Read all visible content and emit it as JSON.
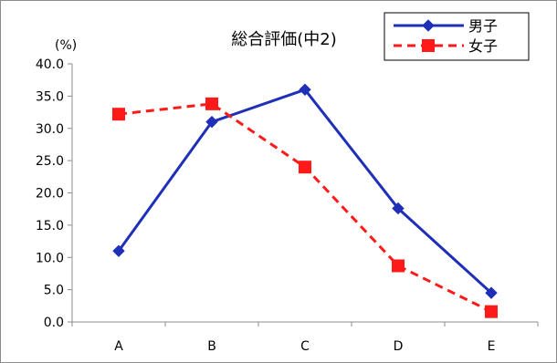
{
  "chart_data": {
    "type": "line",
    "title": "総合評価(中2)",
    "ylabel": "(%)",
    "xlabel": "",
    "categories": [
      "A",
      "B",
      "C",
      "D",
      "E"
    ],
    "ylim": [
      0,
      40
    ],
    "yticks": [
      "0.0",
      "5.0",
      "10.0",
      "15.0",
      "20.0",
      "25.0",
      "30.0",
      "35.0",
      "40.0"
    ],
    "grid": false,
    "legend": "top-right",
    "series": [
      {
        "name": "男子",
        "color": "#1f2fb8",
        "marker": "diamond",
        "line": "solid",
        "values": [
          11.0,
          31.0,
          36.0,
          17.6,
          4.5
        ]
      },
      {
        "name": "女子",
        "color": "#ff1a1a",
        "marker": "square",
        "line": "dashed",
        "values": [
          32.2,
          33.8,
          24.0,
          8.7,
          1.6
        ]
      }
    ]
  }
}
